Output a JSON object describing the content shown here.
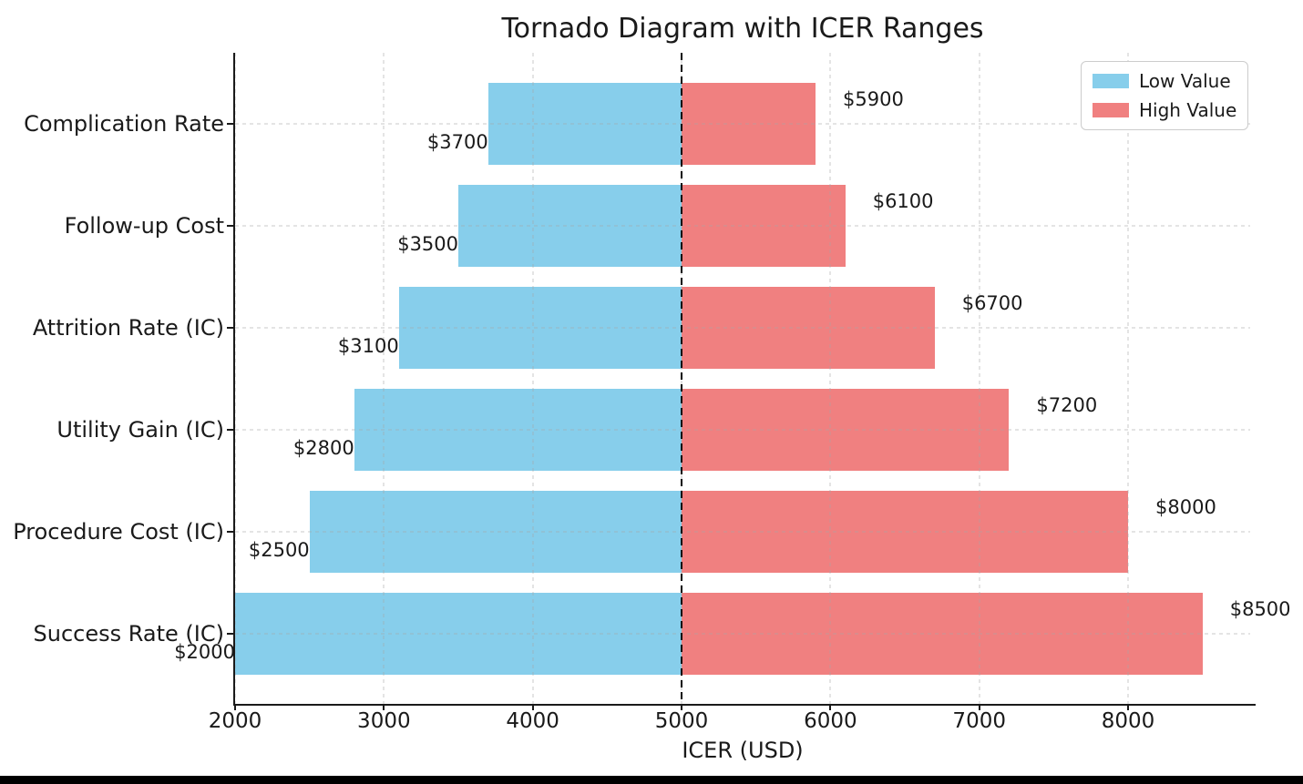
{
  "figure": {
    "background": "#ffffff",
    "bottom_bar_color": "#000000"
  },
  "chart_data": {
    "type": "bar",
    "variant": "tornado-horizontal",
    "title": "Tornado Diagram with ICER Ranges",
    "xlabel": "ICER (USD)",
    "ylabel": "",
    "categories": [
      "Complication Rate",
      "Follow-up Cost",
      "Attrition Rate (IC)",
      "Utility Gain (IC)",
      "Procedure Cost (IC)",
      "Success Rate (IC)"
    ],
    "baseline": 5000,
    "series": [
      {
        "name": "Low Value",
        "color": "#87CEEB",
        "values": [
          3700,
          3500,
          3100,
          2800,
          2500,
          2000
        ]
      },
      {
        "name": "High Value",
        "color": "#F08080",
        "values": [
          5900,
          6100,
          6700,
          7200,
          8000,
          8500
        ]
      }
    ],
    "bar_labels": {
      "low": [
        "$3700",
        "$3500",
        "$3100",
        "$2800",
        "$2500",
        "$2000"
      ],
      "high": [
        "$5900",
        "$6100",
        "$6700",
        "$7200",
        "$8000",
        "$8500"
      ]
    },
    "x_ticks": [
      2000,
      3000,
      4000,
      5000,
      6000,
      7000,
      8000
    ],
    "xlim": [
      2000,
      8820
    ],
    "grid": true,
    "grid_style": "dashed",
    "grid_color": "#bbbbbb",
    "axis_color": "#1a1a1a",
    "baseline_color": "#000000",
    "legend": {
      "position": "upper-right",
      "entries": [
        {
          "label": "Low Value",
          "color": "#87CEEB"
        },
        {
          "label": "High Value",
          "color": "#F08080"
        }
      ]
    }
  }
}
